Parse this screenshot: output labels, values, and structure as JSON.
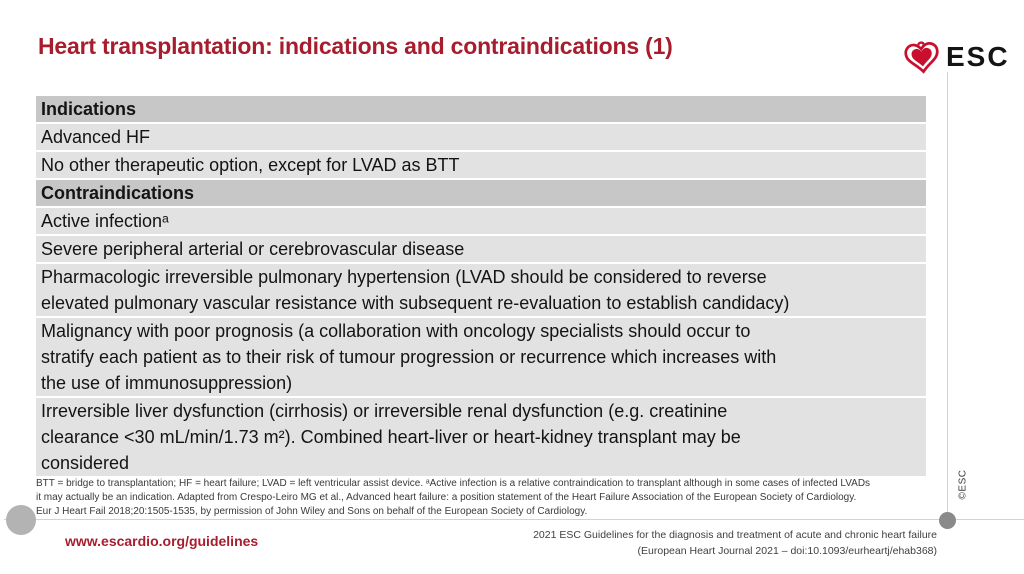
{
  "slide": {
    "title": "Heart transplantation: indications and contraindications (1)",
    "copyright_vertical": "©ESC"
  },
  "logo": {
    "text": "ESC",
    "icon": "esc-heart-icon"
  },
  "table": {
    "rows": [
      {
        "kind": "header",
        "lines": [
          "Indications"
        ]
      },
      {
        "kind": "body",
        "lines": [
          "Advanced HF"
        ]
      },
      {
        "kind": "body",
        "lines": [
          "No other therapeutic option, except for LVAD as BTT"
        ]
      },
      {
        "kind": "header",
        "lines": [
          "Contraindications"
        ]
      },
      {
        "kind": "body",
        "lines": [
          "Active infectionᵃ"
        ]
      },
      {
        "kind": "body",
        "lines": [
          "Severe peripheral arterial or cerebrovascular disease"
        ]
      },
      {
        "kind": "body",
        "lines": [
          "Pharmacologic irreversible pulmonary hypertension (LVAD should be considered to reverse",
          "elevated pulmonary vascular resistance with subsequent re-evaluation to establish candidacy)"
        ]
      },
      {
        "kind": "body",
        "lines": [
          "Malignancy with poor prognosis (a collaboration with oncology specialists should occur to",
          "stratify each patient as to their risk of tumour progression or recurrence which increases with",
          "the use of immunosuppression)"
        ]
      },
      {
        "kind": "body",
        "lines": [
          "Irreversible liver dysfunction (cirrhosis) or irreversible renal dysfunction (e.g. creatinine",
          "clearance <30 mL/min/1.73 m²). Combined heart-liver or heart-kidney transplant may be",
          "considered"
        ]
      }
    ]
  },
  "footnote": {
    "lines": [
      "BTT = bridge to transplantation; HF = heart failure; LVAD = left ventricular assist device. ᵃActive infection is a relative contraindication to transplant although in some cases of infected LVADs",
      "it may actually be an indication. Adapted from Crespo-Leiro MG et al., Advanced heart failure: a position statement of the Heart Failure Association of the European Society of Cardiology.",
      "Eur J Heart Fail 2018;20:1505-1535, by permission of John Wiley and Sons on behalf of the European Society of Cardiology."
    ]
  },
  "footer": {
    "link": "www.escardio.org/guidelines",
    "reference_line1": "2021 ESC Guidelines for the diagnosis and treatment of acute and chronic heart failure",
    "reference_line2": "(European Heart Journal 2021 – doi:10.1093/eurheartj/ehab368)"
  },
  "colors": {
    "accent_red": "#a81d2d",
    "logo_red": "#c8102e",
    "header_row_bg": "#c7c7c7",
    "body_row_bg": "#e2e2e2",
    "divider_gray": "#d2d2d2",
    "dot_left_gray": "#b3b3b3",
    "dot_right_gray": "#8a8a8a"
  }
}
